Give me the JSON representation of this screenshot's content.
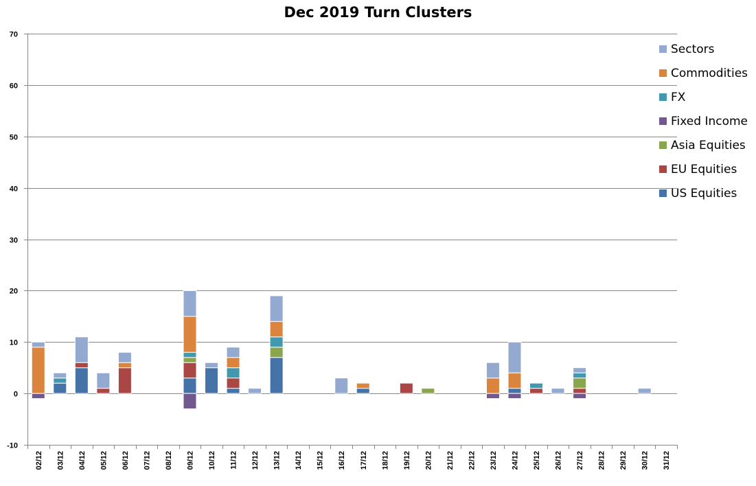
{
  "chart_data": {
    "type": "bar",
    "stacked": true,
    "title": "Dec 2019 Turn Clusters",
    "xlabel": "",
    "ylabel": "",
    "ylim": [
      -10,
      70
    ],
    "yticks": [
      -10,
      0,
      10,
      20,
      30,
      40,
      50,
      60,
      70
    ],
    "grid": true,
    "legend_position": "right",
    "categories": [
      "02/12",
      "03/12",
      "04/12",
      "05/12",
      "06/12",
      "07/12",
      "08/12",
      "09/12",
      "10/12",
      "11/12",
      "12/12",
      "13/12",
      "14/12",
      "15/12",
      "16/12",
      "17/12",
      "18/12",
      "19/12",
      "20/12",
      "21/12",
      "22/12",
      "23/12",
      "24/12",
      "25/12",
      "26/12",
      "27/12",
      "28/12",
      "29/12",
      "30/12",
      "31/12"
    ],
    "series": [
      {
        "name": "US Equities",
        "color": "#4572A7",
        "values": [
          0,
          2,
          5,
          0,
          0,
          0,
          0,
          3,
          5,
          1,
          0,
          7,
          0,
          0,
          0,
          1,
          0,
          0,
          0,
          0,
          0,
          0,
          1,
          0,
          0,
          0,
          0,
          0,
          0,
          0
        ]
      },
      {
        "name": "EU Equities",
        "color": "#AA4643",
        "values": [
          0,
          0,
          1,
          1,
          5,
          0,
          0,
          3,
          0,
          2,
          0,
          0,
          0,
          0,
          0,
          0,
          0,
          2,
          0,
          0,
          0,
          0,
          0,
          1,
          0,
          1,
          0,
          0,
          0,
          0
        ]
      },
      {
        "name": "Asia Equities",
        "color": "#89A54E",
        "values": [
          0,
          0,
          0,
          0,
          0,
          0,
          0,
          1,
          0,
          0,
          0,
          2,
          0,
          0,
          0,
          0,
          0,
          0,
          1,
          0,
          0,
          0,
          0,
          0,
          0,
          2,
          0,
          0,
          0,
          0
        ]
      },
      {
        "name": "Fixed Income",
        "color": "#71588F",
        "values": [
          -1,
          0,
          0,
          0,
          0,
          0,
          0,
          -3,
          0,
          0,
          0,
          0,
          0,
          0,
          0,
          0,
          0,
          0,
          0,
          0,
          0,
          -1,
          -1,
          0,
          0,
          -1,
          0,
          0,
          0,
          0
        ]
      },
      {
        "name": "FX",
        "color": "#4198AF",
        "values": [
          0,
          1,
          0,
          0,
          0,
          0,
          0,
          1,
          0,
          2,
          0,
          2,
          0,
          0,
          0,
          0,
          0,
          0,
          0,
          0,
          0,
          0,
          0,
          1,
          0,
          1,
          0,
          0,
          0,
          0
        ]
      },
      {
        "name": "Commodities",
        "color": "#DB843D",
        "values": [
          9,
          0,
          0,
          0,
          1,
          0,
          0,
          7,
          0,
          2,
          0,
          3,
          0,
          0,
          0,
          1,
          0,
          0,
          0,
          0,
          0,
          3,
          3,
          0,
          0,
          0,
          0,
          0,
          0,
          0
        ]
      },
      {
        "name": "Sectors",
        "color": "#93A9CF",
        "values": [
          1,
          1,
          5,
          3,
          2,
          0,
          0,
          5,
          1,
          2,
          1,
          5,
          0,
          0,
          3,
          0,
          0,
          0,
          0,
          0,
          0,
          3,
          6,
          0,
          1,
          1,
          0,
          0,
          1,
          0
        ]
      }
    ],
    "legend_order": [
      "Sectors",
      "Commodities",
      "FX",
      "Fixed Income",
      "Asia Equities",
      "EU Equities",
      "US Equities"
    ]
  }
}
